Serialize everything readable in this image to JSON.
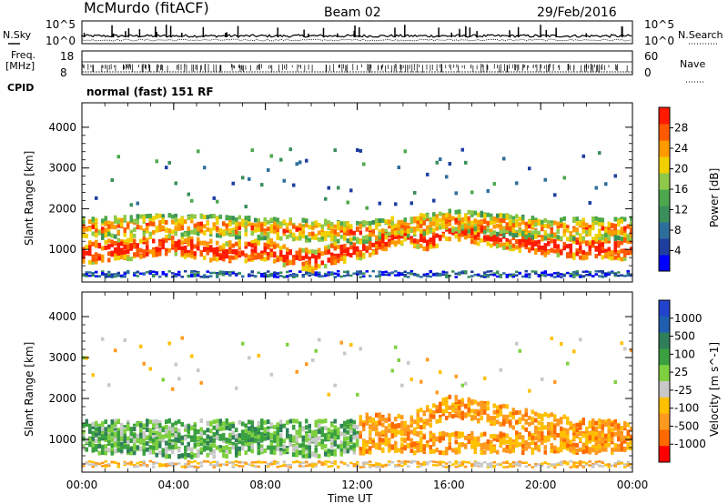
{
  "header": {
    "station": "McMurdo (fitACF)",
    "beam": "Beam 02",
    "date": "29/Feb/2016"
  },
  "top_panel": {
    "left_label_sky": "N.Sky",
    "left_label_freq_1": "Freq.",
    "left_label_freq_2": "[MHz]",
    "left_label_cpid": "CPID",
    "right_label_search": "N.Search",
    "right_label_nave": "Nave",
    "noise_ticks_left": [
      "10^5",
      "10^0"
    ],
    "noise_ticks_right": [
      "10^5",
      "10^0"
    ],
    "freq_ticks": [
      "18",
      "8"
    ],
    "nave_ticks": [
      "60",
      "0"
    ],
    "cpid_text": "normal (fast) 151 RF"
  },
  "colors": {
    "power_scale": [
      "#0000ff",
      "#1f3fa0",
      "#2e6e9c",
      "#3a8f5a",
      "#4ca84c",
      "#8fc94a",
      "#f0d000",
      "#ff9a00",
      "#ff5a00",
      "#ff1a00"
    ],
    "velocity_scale": [
      "#2244cc",
      "#1f5fb0",
      "#2f7f5a",
      "#3aa040",
      "#7fd040",
      "#c8c8c8",
      "#ffc000",
      "#ff9a20",
      "#ff6a00",
      "#ff0000"
    ]
  },
  "chart_data": [
    {
      "type": "heatmap",
      "title": "Power",
      "ylabel": "Slant Range [km]",
      "y_ticks": [
        "1000",
        "2000",
        "3000",
        "4000"
      ],
      "ylim": [
        200,
        4600
      ],
      "colorbar_label": "Power [dB]",
      "colorbar_ticks": [
        "4",
        "8",
        "12",
        "16",
        "20",
        "24",
        "28"
      ],
      "colorbar_range": [
        0,
        32
      ],
      "echo_bands": [
        {
          "t": [
            0,
            2,
            4,
            6,
            8,
            9,
            10,
            11,
            12,
            14,
            15,
            16,
            18,
            20,
            22,
            24
          ],
          "r_center": [
            900,
            1000,
            1100,
            900,
            1000,
            800,
            700,
            900,
            1000,
            1400,
            1200,
            1500,
            1300,
            1100,
            1000,
            1000
          ],
          "value": 26
        },
        {
          "t": [
            0,
            4,
            8,
            12,
            16,
            20,
            24
          ],
          "r_center": [
            1500,
            1600,
            1500,
            1400,
            1700,
            1500,
            1500
          ],
          "value": 18
        }
      ]
    },
    {
      "type": "heatmap",
      "title": "Velocity",
      "ylabel": "Slant Range [km]",
      "y_ticks": [
        "1000",
        "2000",
        "3000",
        "4000"
      ],
      "ylim": [
        200,
        4600
      ],
      "xlabel": "Time UT",
      "x_ticks": [
        "00:00",
        "04:00",
        "08:00",
        "12:00",
        "16:00",
        "20:00",
        "00:00"
      ],
      "colorbar_label": "Velocity [m s^-1]",
      "colorbar_ticks": [
        "1000",
        "500",
        "100",
        "25",
        "-25",
        "-100",
        "-500",
        "-1000"
      ],
      "echo_bands": [
        {
          "t": [
            0,
            2,
            4,
            6,
            8,
            10,
            12
          ],
          "r_center": [
            900,
            900,
            800,
            800,
            900,
            800,
            900
          ],
          "value": 100
        },
        {
          "t": [
            12,
            14,
            16,
            18,
            20,
            22,
            24
          ],
          "r_center": [
            1400,
            1300,
            1800,
            1600,
            1400,
            1200,
            1200
          ],
          "value": -300
        }
      ]
    }
  ]
}
